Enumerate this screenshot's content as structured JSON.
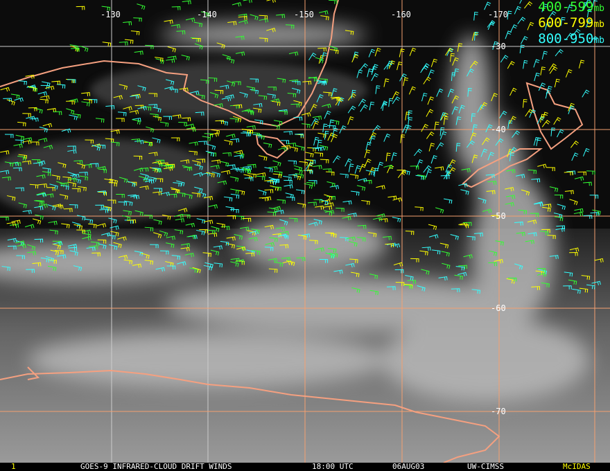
{
  "legend": [
    {
      "label": "400-599",
      "unit": "mb",
      "color": "#33ff33"
    },
    {
      "label": "600-799",
      "unit": "mb",
      "color": "#ffff00"
    },
    {
      "label": "800-950",
      "unit": "mb",
      "color": "#33ffff"
    }
  ],
  "longitudes": [
    "-130",
    "-140",
    "-150",
    "-160",
    "-170"
  ],
  "latitudes": [
    "-30",
    "-40",
    "-50",
    "-60",
    "-70"
  ],
  "grid_color": "#f5a070",
  "coast_color": "#f5a080",
  "status_bar": {
    "frame": "1",
    "title": "GOES-9 INFRARED-CLOUD DRIFT WINDS",
    "time": "18:00 UTC",
    "date": "06AUG03",
    "source": "UW-CIMSS",
    "software": "McIDAS"
  }
}
